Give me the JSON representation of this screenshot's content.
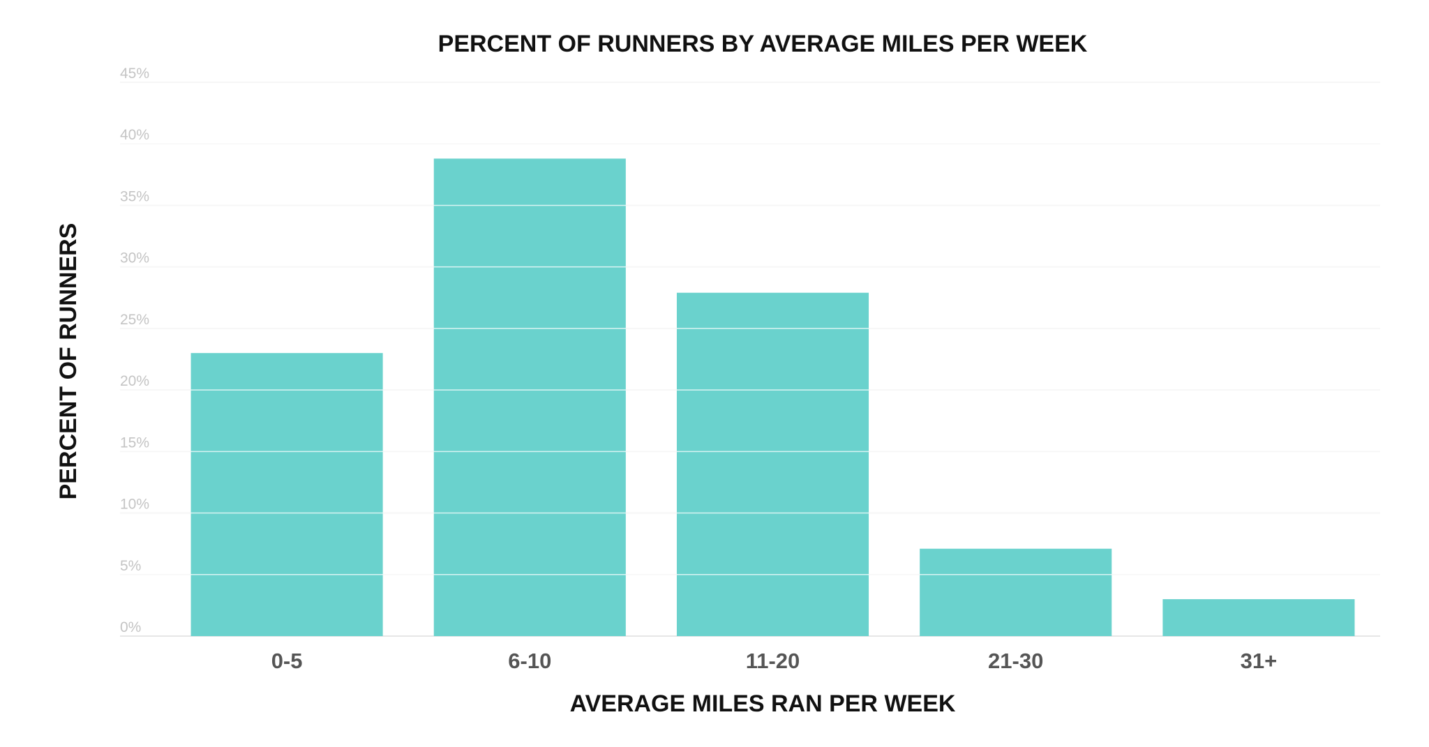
{
  "chart_data": {
    "type": "bar",
    "title": "PERCENT OF RUNNERS BY AVERAGE MILES PER WEEK",
    "xlabel": "AVERAGE MILES RAN PER WEEK",
    "ylabel": "PERCENT OF RUNNERS",
    "categories": [
      "0-5",
      "6-10",
      "11-20",
      "21-30",
      "31+"
    ],
    "values": [
      23,
      38.8,
      27.9,
      7.1,
      3
    ],
    "ylim": [
      0,
      45
    ],
    "yticks": [
      0,
      5,
      10,
      15,
      20,
      25,
      30,
      35,
      40,
      45
    ],
    "ytick_labels": [
      "0%",
      "5%",
      "10%",
      "15%",
      "20%",
      "25%",
      "30%",
      "35%",
      "40%",
      "45%"
    ],
    "grid": true,
    "legend": "none",
    "colors": {
      "bar": "#6AD2CD",
      "grid": "#dddddd",
      "ytick": "#c4c4c4",
      "xtick": "#555555",
      "title": "#111111"
    }
  }
}
